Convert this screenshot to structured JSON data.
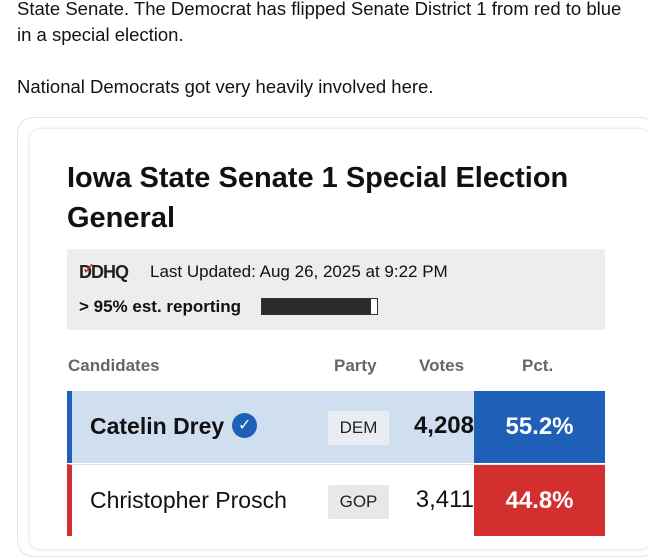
{
  "post": {
    "line1": "State Senate. The Democrat has flipped Senate District 1 from red to blue in a special election.",
    "line2": "National Democrats got very heavily involved here."
  },
  "card": {
    "title": "Iowa State Senate 1 Special Election General",
    "logo": "DDHQ",
    "last_updated": "Last Updated: Aug 26, 2025 at 9:22 PM",
    "reporting_label": "> 95% est. reporting",
    "reporting_fraction": 0.95,
    "headers": {
      "candidates": "Candidates",
      "party": "Party",
      "votes": "Votes",
      "pct": "Pct."
    },
    "candidates": [
      {
        "name": "Catelin Drey",
        "party": "DEM",
        "votes": "4,208",
        "pct": "55.2%",
        "color": "#1e5fb8",
        "winner": true
      },
      {
        "name": "Christopher Prosch",
        "party": "GOP",
        "votes": "3,411",
        "pct": "44.8%",
        "color": "#d32f2f",
        "winner": false
      }
    ]
  }
}
